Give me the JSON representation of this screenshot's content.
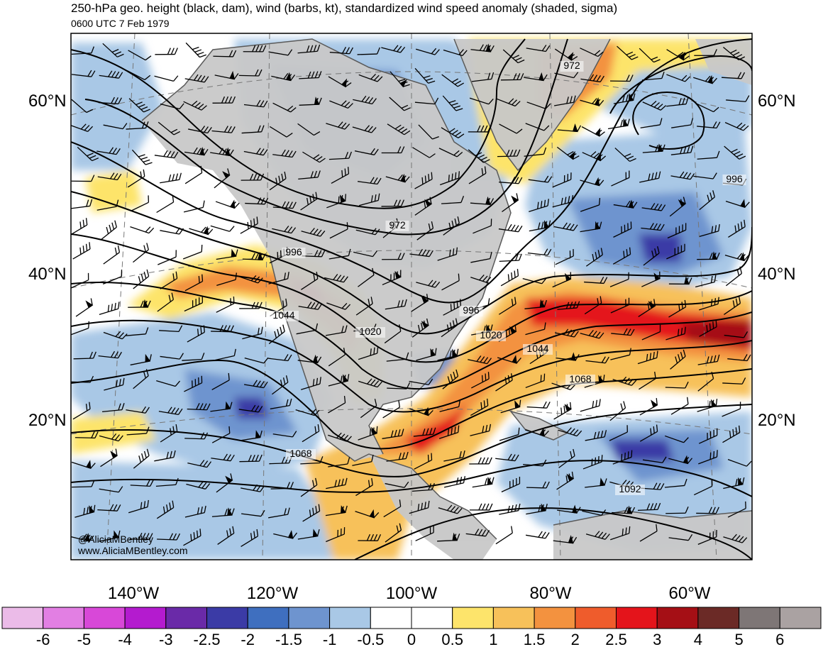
{
  "title": "250-hPa geo. height (black, dam), wind (barbs, kt), standardized wind speed anomaly (shaded, sigma)",
  "subtitle": "0600 UTC 7 Feb 1979",
  "credits": [
    "@AliciaMBentley",
    "www.AliciaMBentley.com"
  ],
  "lat_labels": [
    "60°N",
    "40°N",
    "20°N"
  ],
  "lon_labels": [
    "140°W",
    "120°W",
    "100°W",
    "80°W",
    "60°W"
  ],
  "contour_labels": [
    "972",
    "972",
    "996",
    "996",
    "996",
    "1020",
    "1020",
    "1044",
    "1044",
    "1068",
    "1068",
    "1092"
  ],
  "colorbar": {
    "labels": [
      "-6",
      "-5",
      "-4",
      "-3",
      "-2.5",
      "-2",
      "-1.5",
      "-1",
      "-0.5",
      "0",
      "0.5",
      "1",
      "1.5",
      "2",
      "2.5",
      "3",
      "4",
      "5",
      "6"
    ],
    "colors": [
      "#ebbbe8",
      "#e27fe3",
      "#d848d8",
      "#b41bcf",
      "#6a2aa8",
      "#3b3ba6",
      "#3f6fbf",
      "#6e94cf",
      "#a9c8e6",
      "#ffffff",
      "#ffffff",
      "#fde46b",
      "#f7c15a",
      "#f3923f",
      "#ef5c2c",
      "#e4141b",
      "#a50f15",
      "#6b2a26",
      "#7e7676",
      "#aaa2a2"
    ]
  },
  "colors": {
    "land": "#c8c8c8",
    "coast": "#5a5a5a",
    "contour": "#000000",
    "neg_light": "#a9c8e6",
    "neg_mid": "#6e94cf",
    "neg_strong": "#3f6fbf",
    "neg_deep": "#3b3ba6",
    "pos_light": "#fde46b",
    "pos_mid": "#f7c15a",
    "pos_orange": "#f3923f",
    "pos_red": "#ef5c2c",
    "pos_deep": "#e4141b",
    "pos_dark": "#a50f15"
  }
}
